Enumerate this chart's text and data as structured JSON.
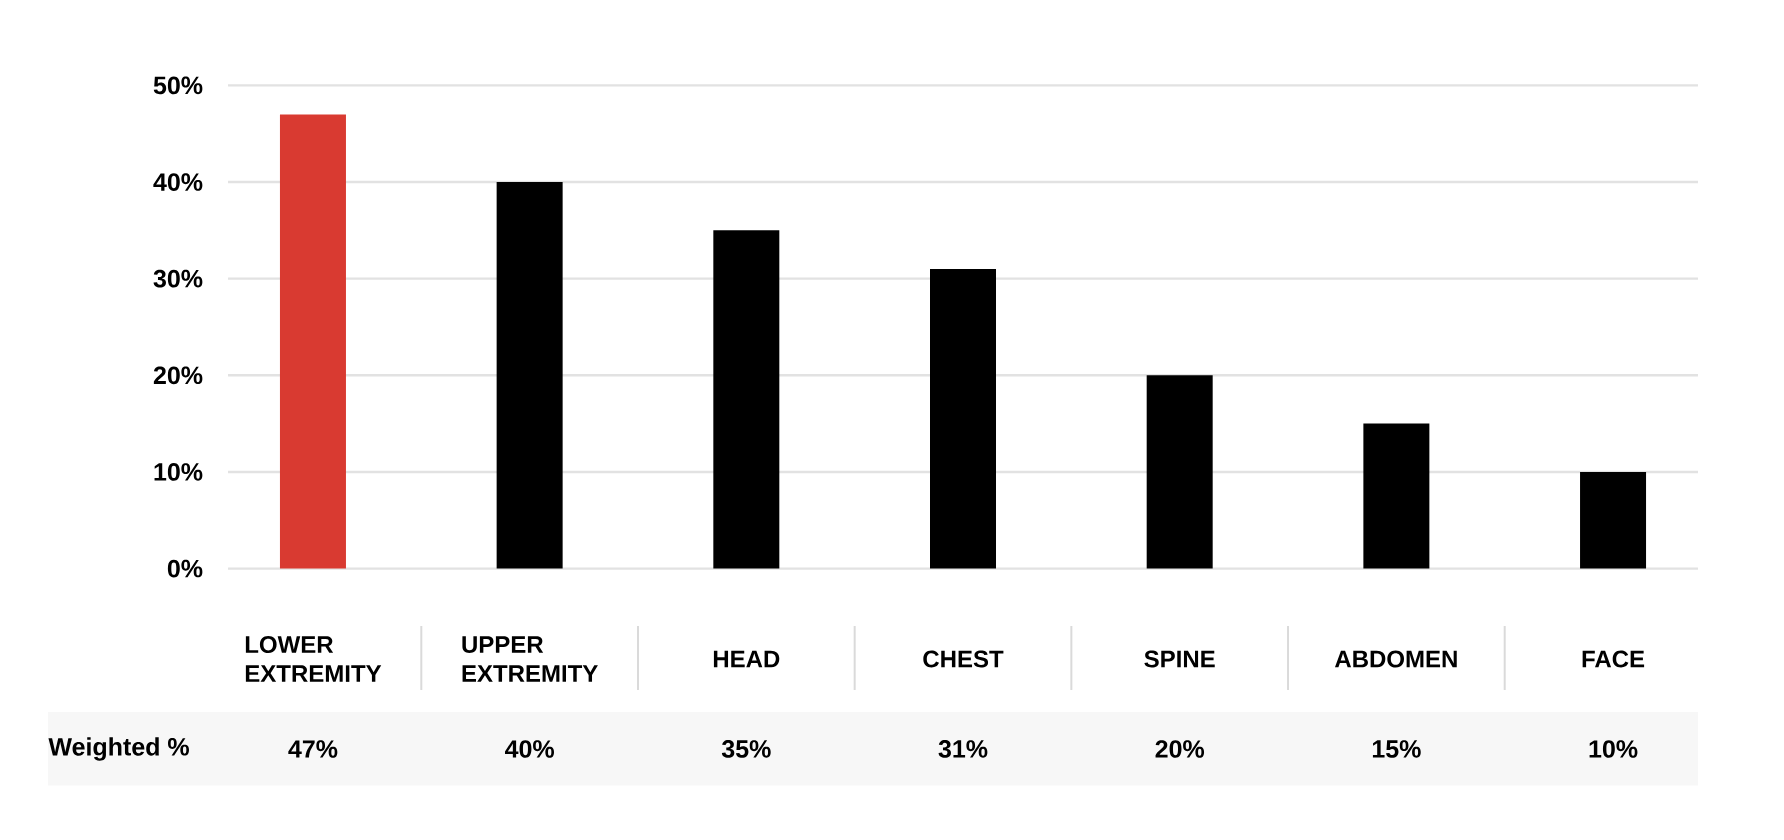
{
  "chart_data": {
    "type": "bar",
    "categories": [
      "LOWER EXTREMITY",
      "UPPER EXTREMITY",
      "HEAD",
      "CHEST",
      "SPINE",
      "ABDOMEN",
      "FACE"
    ],
    "values": [
      47,
      40,
      35,
      31,
      20,
      15,
      10
    ],
    "colors": [
      "#d93a31",
      "#000000",
      "#000000",
      "#000000",
      "#000000",
      "#000000",
      "#000000"
    ],
    "value_labels": [
      "47%",
      "40%",
      "35%",
      "31%",
      "20%",
      "15%",
      "10%"
    ],
    "ylim": [
      0,
      50
    ],
    "yticks": [
      {
        "value": 0,
        "label": "0%"
      },
      {
        "value": 10,
        "label": "10%"
      },
      {
        "value": 20,
        "label": "20%"
      },
      {
        "value": 30,
        "label": "30%"
      },
      {
        "value": 40,
        "label": "40%"
      },
      {
        "value": 50,
        "label": "50%"
      }
    ],
    "grid": "y",
    "annotations": [
      "Weighted %"
    ]
  }
}
